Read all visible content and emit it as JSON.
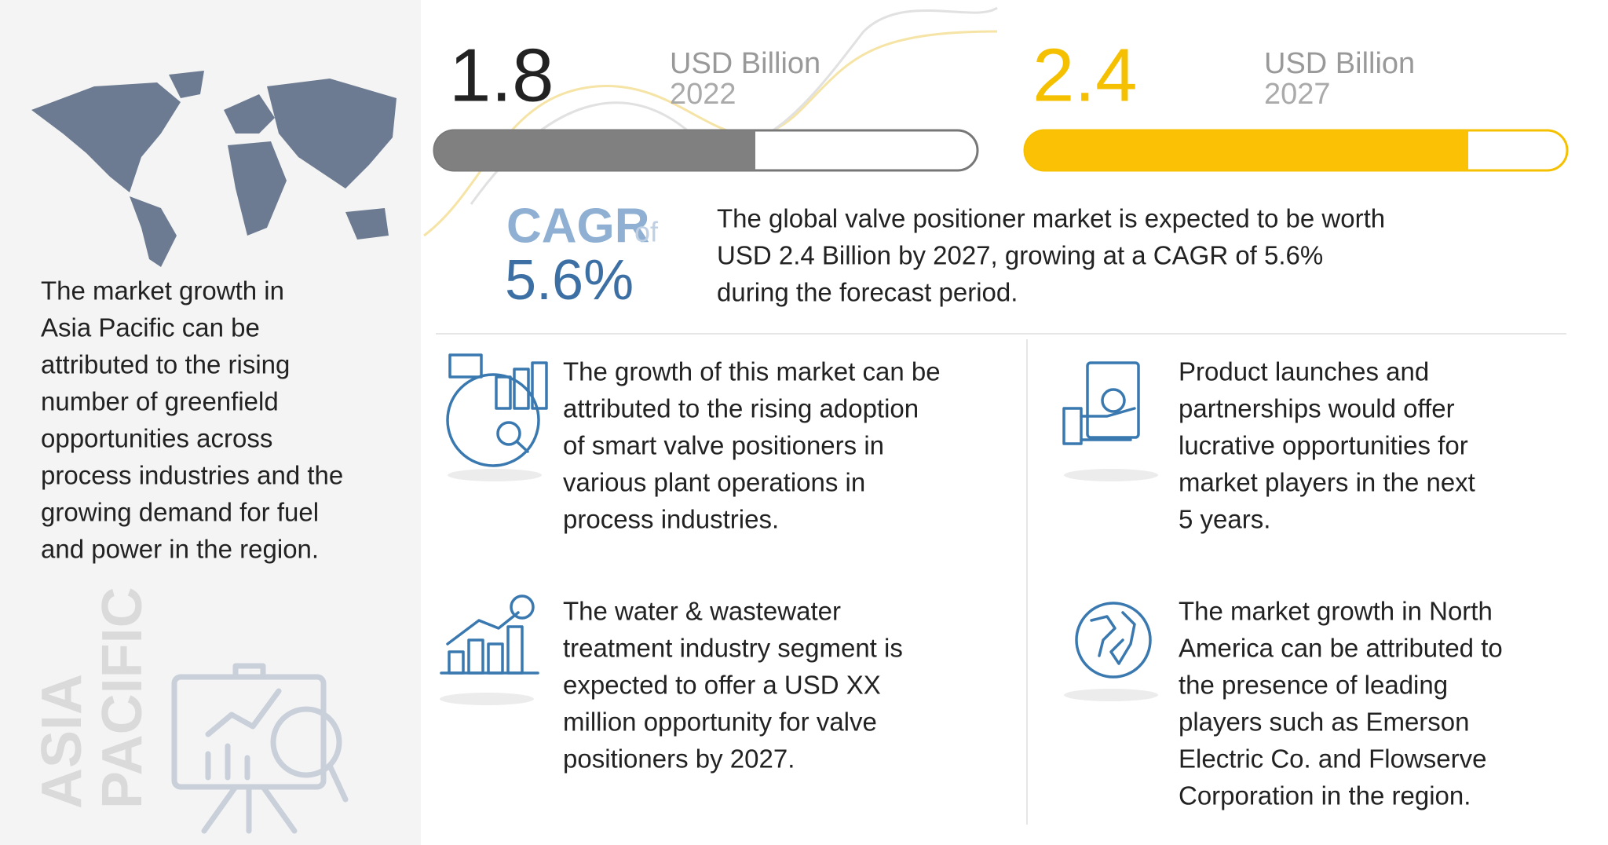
{
  "left_panel": {
    "description": [
      "The market growth in",
      "Asia Pacific can be",
      "attributed to the rising",
      "number of greenfield",
      "opportunities across",
      "process industries and the",
      "growing demand for fuel",
      "and power in the region."
    ],
    "region_label": [
      "ASIA",
      "PACIFIC"
    ]
  },
  "stats": [
    {
      "value": "1.8",
      "unit": "USD Billion",
      "year": "2022"
    },
    {
      "value": "2.4",
      "unit": "USD Billion",
      "year": "2027"
    }
  ],
  "cagr": {
    "label": "CAGR",
    "connector": "of",
    "value": "5.6%"
  },
  "summary": [
    "The global valve positioner market is expected to be worth",
    "USD 2.4 Billion by 2027, growing at a CAGR of 5.6%",
    "during the forecast period."
  ],
  "insights": [
    [
      "The growth of this market can be",
      "attributed to the rising adoption",
      "of smart valve positioners in",
      "various plant operations in",
      "process industries."
    ],
    [
      "Product launches and",
      "partnerships would offer",
      "lucrative opportunities for",
      "market players in the next",
      "5 years."
    ],
    [
      "The water & wastewater",
      "treatment industry segment is",
      "expected to offer a USD XX",
      "million opportunity for valve",
      "positioners by 2027."
    ],
    [
      "The market growth in North",
      "America can be attributed to",
      "the presence of leading",
      "players such as Emerson",
      "Electric Co. and Flowserve",
      "Corporation in the region."
    ]
  ]
}
